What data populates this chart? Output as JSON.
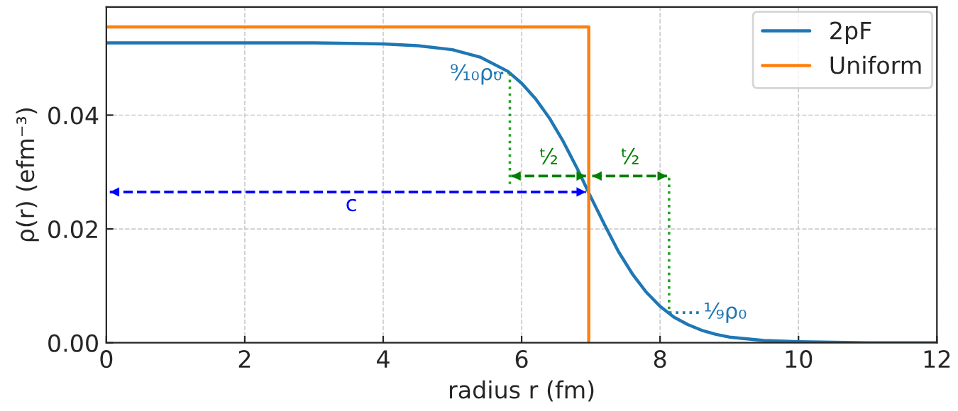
{
  "chart_data": {
    "type": "line",
    "xlabel": "radius r (fm)",
    "ylabel": "ρ(r) (efm⁻³)",
    "xlim": [
      0,
      12
    ],
    "ylim": [
      0,
      0.059
    ],
    "xticks": [
      0,
      2,
      4,
      6,
      8,
      10,
      12
    ],
    "yticks": [
      {
        "value": 0,
        "label": "0.00"
      },
      {
        "value": 0.02,
        "label": "0.02"
      },
      {
        "value": 0.04,
        "label": "0.04"
      }
    ],
    "grid": true,
    "legend": "top right",
    "series": [
      {
        "name": "2pF",
        "color": "#1f77b4",
        "x": [
          0,
          2,
          3,
          4,
          4.5,
          5,
          5.4,
          5.8,
          6.0,
          6.2,
          6.4,
          6.6,
          6.8,
          7.0,
          7.2,
          7.4,
          7.6,
          7.8,
          8.0,
          8.2,
          8.4,
          8.6,
          8.8,
          9.0,
          9.5,
          10,
          11,
          12
        ],
        "values": [
          0.0527,
          0.0527,
          0.0527,
          0.0525,
          0.0522,
          0.0515,
          0.0502,
          0.0477,
          0.0456,
          0.0429,
          0.0395,
          0.0354,
          0.0307,
          0.0256,
          0.0207,
          0.016,
          0.0121,
          0.0089,
          0.0064,
          0.0045,
          0.0032,
          0.0022,
          0.0015,
          0.001,
          0.0004,
          0.0002,
          0,
          0
        ]
      },
      {
        "name": "Uniform",
        "color": "#ff7f0e",
        "x": [
          0,
          6.97,
          6.97
        ],
        "values": [
          0.0555,
          0.0555,
          0
        ]
      },
      {
        "color": "#2ca02c",
        "line_style": "dotted",
        "x": [
          5.83,
          5.83
        ],
        "values": [
          0.0474,
          0.0275
        ]
      },
      {
        "color": "#2ca02c",
        "line_style": "dotted",
        "x": [
          8.13,
          8.13
        ],
        "values": [
          0.029,
          0.0053
        ]
      },
      {
        "color": "#1f77b4",
        "line_style": "dotted",
        "x": [
          5.6,
          5.83
        ],
        "values": [
          0.0474,
          0.0474
        ]
      },
      {
        "color": "#1f77b4",
        "line_style": "dotted",
        "x": [
          8.13,
          8.6
        ],
        "values": [
          0.0053,
          0.0053
        ]
      },
      {
        "color": "#0000ff",
        "line_style": "dashed",
        "x": [
          0.05,
          6.93
        ],
        "values": [
          0.0265,
          0.0265
        ]
      },
      {
        "color": "#008000",
        "line_style": "dashed",
        "x": [
          5.85,
          6.93
        ],
        "values": [
          0.0293,
          0.0293
        ]
      },
      {
        "color": "#008000",
        "line_style": "dashed",
        "x": [
          7.02,
          8.1
        ],
        "values": [
          0.0293,
          0.0293
        ]
      }
    ],
    "annotations": [
      "⁹⁄₁₀ρ₀",
      "¹⁄₉ρ₀",
      "ᵗ⁄₂",
      "ᵗ⁄₂",
      "c"
    ]
  }
}
